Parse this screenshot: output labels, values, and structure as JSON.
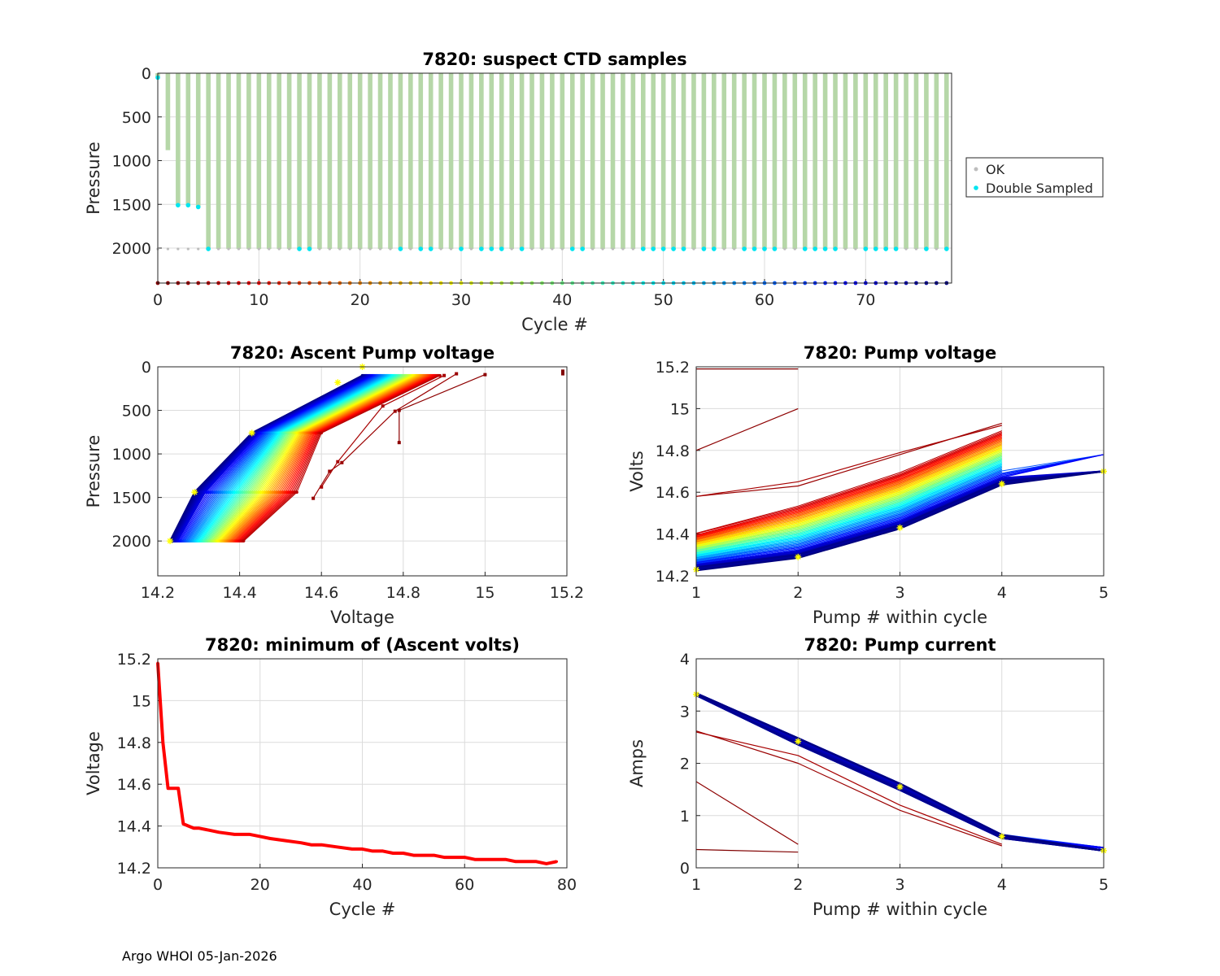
{
  "footer": "Argo WHOI 05-Jan-2026",
  "colors": {
    "double_sampled": "#00e5f0",
    "ok": "#bdbdbd",
    "profile_bar": "#b6d7a8",
    "min_volts_line": "#ff0000",
    "marker": "#ffff00"
  },
  "chart_data": [
    {
      "id": "ctd",
      "type": "bar",
      "title": "7820: suspect CTD samples",
      "xlabel": "Cycle #",
      "ylabel": "Pressure",
      "xlim": [
        0,
        78.5
      ],
      "ylim": [
        2400,
        0
      ],
      "xticks": [
        "0",
        "10",
        "20",
        "30",
        "40",
        "50",
        "60",
        "70"
      ],
      "yticks": [
        "0",
        "500",
        "1000",
        "1500",
        "2000"
      ],
      "legend": {
        "position": "outside-right",
        "entries": [
          "OK",
          "Double Sampled"
        ]
      },
      "profile_depths": [
        {
          "cycle": 0,
          "depth": 50
        },
        {
          "cycle": 1,
          "depth": 880
        },
        {
          "cycle": 2,
          "depth": 1510
        },
        {
          "cycle": 3,
          "depth": 1510
        },
        {
          "cycle": 4,
          "depth": 1530
        },
        {
          "cycle": "5-78",
          "depth": 2010
        }
      ],
      "double_sampled_cycles": [
        0,
        2,
        3,
        4,
        5,
        14,
        15,
        24,
        26,
        27,
        30,
        32,
        33,
        34,
        36,
        41,
        42,
        48,
        49,
        50,
        51,
        52,
        54,
        55,
        58,
        59,
        60,
        61,
        64,
        65,
        66,
        67,
        70,
        71,
        72,
        73,
        76,
        78
      ]
    },
    {
      "id": "asc",
      "type": "line",
      "title": "7820: Ascent Pump voltage",
      "xlabel": "Voltage",
      "ylabel": "Pressure",
      "xlim": [
        14.2,
        15.2
      ],
      "ylim": [
        2400,
        0
      ],
      "xticks": [
        "14.2",
        "14.4",
        "14.6",
        "14.8",
        "15",
        "15.2"
      ],
      "yticks": [
        "0",
        "500",
        "1000",
        "1500",
        "2000"
      ],
      "series_description": "one line per cycle, colored by cycle number (jet: 0 dark red to 78 dark blue)",
      "model": {
        "v_top_first": 14.89,
        "v_top_last": 14.7,
        "v_mid_first": 14.6,
        "v_mid_last": 14.43,
        "p_mid": 760,
        "v_deep_first": 14.54,
        "v_deep_last": 14.29,
        "p_deep": 1440,
        "v_bottom_first": 14.41,
        "v_bottom_last": 14.23,
        "p_bottom": 2000,
        "p_top": 100
      },
      "early_cycles": [
        {
          "cycle": 0,
          "points": [
            [
              15.19,
              50
            ],
            [
              15.19,
              80
            ]
          ]
        },
        {
          "cycle": 1,
          "points": [
            [
              15.0,
              90
            ],
            [
              14.79,
              500
            ],
            [
              14.79,
              870
            ]
          ]
        },
        {
          "cycle": 2,
          "points": [
            [
              14.93,
              80
            ],
            [
              14.78,
              510
            ],
            [
              14.65,
              1100
            ],
            [
              14.62,
              1200
            ],
            [
              14.58,
              1510
            ]
          ]
        },
        {
          "cycle": 3,
          "points": [
            [
              14.9,
              100
            ],
            [
              14.75,
              450
            ],
            [
              14.64,
              1090
            ],
            [
              14.6,
              1380
            ]
          ]
        }
      ]
    },
    {
      "id": "pv",
      "type": "line",
      "title": "7820: Pump voltage",
      "xlabel": "Pump # within cycle",
      "ylabel": "Volts",
      "xlim": [
        1,
        5
      ],
      "ylim": [
        14.2,
        15.2
      ],
      "xticks": [
        "1",
        "2",
        "3",
        "4",
        "5"
      ],
      "yticks": [
        "14.2",
        "14.4",
        "14.6",
        "14.8",
        "15",
        "15.2"
      ],
      "first_cycle_values": [
        14.4,
        14.53,
        14.69,
        14.89
      ],
      "last_cycle_values": [
        14.23,
        14.29,
        14.43,
        14.64,
        14.7
      ],
      "special_lines": [
        {
          "cycle": 0,
          "values": [
            15.19,
            15.19
          ]
        },
        {
          "cycle": 1,
          "values": [
            14.8,
            15.0
          ]
        },
        {
          "cycle": 2,
          "values": [
            14.58,
            14.63,
            14.78,
            14.93
          ]
        },
        {
          "cycle": 3,
          "values": [
            14.58,
            14.65,
            14.79,
            14.92
          ]
        }
      ]
    },
    {
      "id": "minv",
      "type": "line",
      "title": "7820: minimum of (Ascent volts)",
      "xlabel": "Cycle #",
      "ylabel": "Voltage",
      "xlim": [
        0,
        80
      ],
      "ylim": [
        14.2,
        15.2
      ],
      "xticks": [
        "0",
        "20",
        "40",
        "60",
        "80"
      ],
      "yticks": [
        "14.2",
        "14.4",
        "14.6",
        "14.8",
        "15",
        "15.2"
      ],
      "x": [
        0,
        1,
        2,
        3,
        4,
        5,
        6,
        7,
        8,
        10,
        12,
        15,
        18,
        20,
        22,
        25,
        28,
        30,
        32,
        35,
        38,
        40,
        42,
        44,
        46,
        48,
        50,
        52,
        54,
        56,
        58,
        60,
        62,
        64,
        66,
        68,
        70,
        72,
        74,
        76,
        78
      ],
      "values": [
        15.18,
        14.8,
        14.58,
        14.58,
        14.58,
        14.41,
        14.4,
        14.39,
        14.39,
        14.38,
        14.37,
        14.36,
        14.36,
        14.35,
        14.34,
        14.33,
        14.32,
        14.31,
        14.31,
        14.3,
        14.29,
        14.29,
        14.28,
        14.28,
        14.27,
        14.27,
        14.26,
        14.26,
        14.26,
        14.25,
        14.25,
        14.25,
        14.24,
        14.24,
        14.24,
        14.24,
        14.23,
        14.23,
        14.23,
        14.22,
        14.23
      ]
    },
    {
      "id": "pc",
      "type": "line",
      "title": "7820: Pump current",
      "xlabel": "Pump # within cycle",
      "ylabel": "Amps",
      "xlim": [
        1,
        5
      ],
      "ylim": [
        0,
        4
      ],
      "xticks": [
        "1",
        "2",
        "3",
        "4",
        "5"
      ],
      "yticks": [
        "0",
        "1",
        "2",
        "3",
        "4"
      ],
      "typical_values": [
        3.32,
        2.42,
        1.55,
        0.6,
        0.33
      ],
      "special_lines": [
        {
          "cycle": 0,
          "values": [
            0.35,
            0.3
          ]
        },
        {
          "cycle": 1,
          "values": [
            1.65,
            0.45
          ]
        },
        {
          "cycle": 2,
          "values": [
            2.62,
            2.0,
            1.1,
            0.42
          ]
        },
        {
          "cycle": 3,
          "values": [
            2.6,
            2.15,
            1.2,
            0.45
          ]
        }
      ]
    }
  ]
}
